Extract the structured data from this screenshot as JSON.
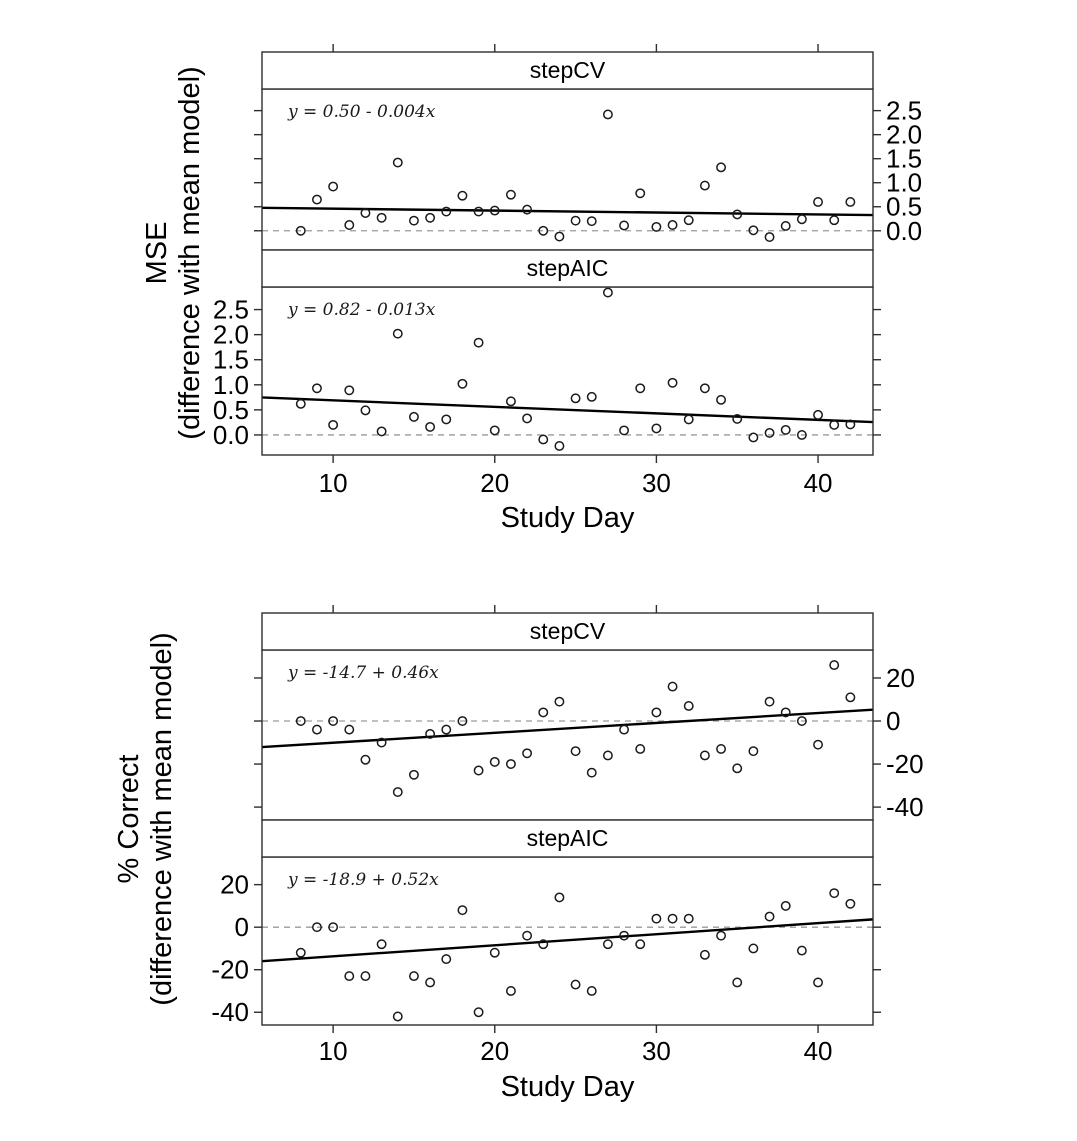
{
  "style": {
    "background": "#ffffff",
    "point_color": "#1a1a1a",
    "regression_color": "#000000",
    "reference_color": "#9a9a9a",
    "border_color": "#2e2e2e",
    "text_color": "#000000"
  },
  "chart_data": [
    {
      "id": "mse",
      "type": "scatter",
      "xlabel": "Study Day",
      "ylabel_lines": [
        "MSE",
        "(difference with mean model)"
      ],
      "xlim": [
        5.6,
        43.4
      ],
      "x_ticks": [
        10,
        20,
        30,
        40
      ],
      "x_tick_labels": [
        "10",
        "20",
        "30",
        "40"
      ],
      "ylim": [
        -0.4,
        2.95
      ],
      "y_ticks": [
        0,
        0.5,
        1,
        1.5,
        2,
        2.5
      ],
      "y_tick_labels": [
        "0.0",
        "0.5",
        "1.0",
        "1.5",
        "2.0",
        "2.5"
      ],
      "reference_line_y": 0,
      "grid": false,
      "legend": "none",
      "panels": [
        {
          "strip_label": "stepCV",
          "tick_label_side": "right",
          "annotation": "y = 0.50 - 0.004x",
          "regression": {
            "intercept": 0.5,
            "slope": -0.004
          },
          "points": [
            [
              8,
              0
            ],
            [
              9,
              0.65
            ],
            [
              10,
              0.92
            ],
            [
              11,
              0.12
            ],
            [
              12,
              0.37
            ],
            [
              13,
              0.27
            ],
            [
              14,
              1.42
            ],
            [
              15,
              0.21
            ],
            [
              16,
              0.27
            ],
            [
              17,
              0.4
            ],
            [
              18,
              0.73
            ],
            [
              19,
              0.4
            ],
            [
              20,
              0.42
            ],
            [
              21,
              0.75
            ],
            [
              22,
              0.44
            ],
            [
              23,
              0
            ],
            [
              24,
              -0.12
            ],
            [
              25,
              0.21
            ],
            [
              26,
              0.2
            ],
            [
              27,
              2.42
            ],
            [
              28,
              0.11
            ],
            [
              29,
              0.78
            ],
            [
              30,
              0.08
            ],
            [
              31,
              0.12
            ],
            [
              32,
              0.22
            ],
            [
              33,
              0.94
            ],
            [
              34,
              1.32
            ],
            [
              35,
              0.34
            ],
            [
              36,
              0.01
            ],
            [
              37,
              -0.13
            ],
            [
              38,
              0.1
            ],
            [
              39,
              0.24
            ],
            [
              40,
              0.6
            ],
            [
              41,
              0.22
            ],
            [
              42,
              0.6
            ]
          ]
        },
        {
          "strip_label": "stepAIC",
          "tick_label_side": "left",
          "annotation": "y = 0.82 - 0.013x",
          "regression": {
            "intercept": 0.82,
            "slope": -0.013
          },
          "points": [
            [
              8,
              0.62
            ],
            [
              9,
              0.93
            ],
            [
              10,
              0.2
            ],
            [
              11,
              0.89
            ],
            [
              12,
              0.49
            ],
            [
              13,
              0.07
            ],
            [
              14,
              2.02
            ],
            [
              15,
              0.36
            ],
            [
              16,
              0.16
            ],
            [
              17,
              0.31
            ],
            [
              18,
              1.02
            ],
            [
              19,
              1.84
            ],
            [
              20,
              0.09
            ],
            [
              21,
              0.67
            ],
            [
              22,
              0.33
            ],
            [
              23,
              -0.09
            ],
            [
              24,
              -0.22
            ],
            [
              25,
              0.73
            ],
            [
              26,
              0.76
            ],
            [
              27,
              2.84
            ],
            [
              28,
              0.09
            ],
            [
              29,
              0.93
            ],
            [
              30,
              0.13
            ],
            [
              31,
              1.04
            ],
            [
              32,
              0.31
            ],
            [
              33,
              0.93
            ],
            [
              34,
              0.7
            ],
            [
              35,
              0.32
            ],
            [
              36,
              -0.05
            ],
            [
              37,
              0.04
            ],
            [
              38,
              0.1
            ],
            [
              39,
              0
            ],
            [
              40,
              0.4
            ],
            [
              41,
              0.2
            ],
            [
              42,
              0.21
            ]
          ]
        }
      ]
    },
    {
      "id": "pct-correct",
      "type": "scatter",
      "xlabel": "Study Day",
      "ylabel_lines": [
        "% Correct",
        "(difference with mean model)"
      ],
      "xlim": [
        5.6,
        43.4
      ],
      "x_ticks": [
        10,
        20,
        30,
        40
      ],
      "x_tick_labels": [
        "10",
        "20",
        "30",
        "40"
      ],
      "ylim": [
        -46,
        33
      ],
      "y_ticks": [
        20,
        0,
        -20,
        -40
      ],
      "y_tick_labels": [
        "20",
        "0",
        "-20",
        "-40"
      ],
      "reference_line_y": 0,
      "grid": false,
      "legend": "none",
      "panels": [
        {
          "strip_label": "stepCV",
          "tick_label_side": "right",
          "annotation": "y = -14.7 + 0.46x",
          "regression": {
            "intercept": -14.7,
            "slope": 0.46
          },
          "points": [
            [
              8,
              0
            ],
            [
              9,
              -4
            ],
            [
              10,
              0
            ],
            [
              11,
              -4
            ],
            [
              12,
              -18
            ],
            [
              13,
              -10
            ],
            [
              14,
              -33
            ],
            [
              15,
              -25
            ],
            [
              16,
              -6
            ],
            [
              17,
              -4
            ],
            [
              18,
              0
            ],
            [
              19,
              -23
            ],
            [
              20,
              -19
            ],
            [
              21,
              -20
            ],
            [
              22,
              -15
            ],
            [
              23,
              4
            ],
            [
              24,
              9
            ],
            [
              25,
              -14
            ],
            [
              26,
              -24
            ],
            [
              27,
              -16
            ],
            [
              28,
              -4
            ],
            [
              29,
              -13
            ],
            [
              30,
              4
            ],
            [
              31,
              16
            ],
            [
              32,
              7
            ],
            [
              33,
              -16
            ],
            [
              34,
              -13
            ],
            [
              35,
              -22
            ],
            [
              36,
              -14
            ],
            [
              37,
              9
            ],
            [
              38,
              4
            ],
            [
              39,
              0
            ],
            [
              40,
              -11
            ],
            [
              41,
              26
            ],
            [
              42,
              11
            ]
          ]
        },
        {
          "strip_label": "stepAIC",
          "tick_label_side": "left",
          "annotation": "y = -18.9 + 0.52x",
          "regression": {
            "intercept": -18.9,
            "slope": 0.52
          },
          "points": [
            [
              8,
              -12
            ],
            [
              9,
              0
            ],
            [
              10,
              0
            ],
            [
              11,
              -23
            ],
            [
              12,
              -23
            ],
            [
              13,
              -8
            ],
            [
              14,
              -42
            ],
            [
              15,
              -23
            ],
            [
              16,
              -26
            ],
            [
              17,
              -15
            ],
            [
              18,
              8
            ],
            [
              19,
              -40
            ],
            [
              20,
              -12
            ],
            [
              21,
              -30
            ],
            [
              22,
              -4
            ],
            [
              23,
              -8
            ],
            [
              24,
              14
            ],
            [
              25,
              -27
            ],
            [
              26,
              -30
            ],
            [
              27,
              -8
            ],
            [
              28,
              -4
            ],
            [
              29,
              -8
            ],
            [
              30,
              4
            ],
            [
              31,
              4
            ],
            [
              32,
              4
            ],
            [
              33,
              -13
            ],
            [
              34,
              -4
            ],
            [
              35,
              -26
            ],
            [
              36,
              -10
            ],
            [
              37,
              5
            ],
            [
              38,
              10
            ],
            [
              39,
              -11
            ],
            [
              40,
              -26
            ],
            [
              41,
              16
            ],
            [
              42,
              11
            ]
          ]
        }
      ]
    }
  ]
}
